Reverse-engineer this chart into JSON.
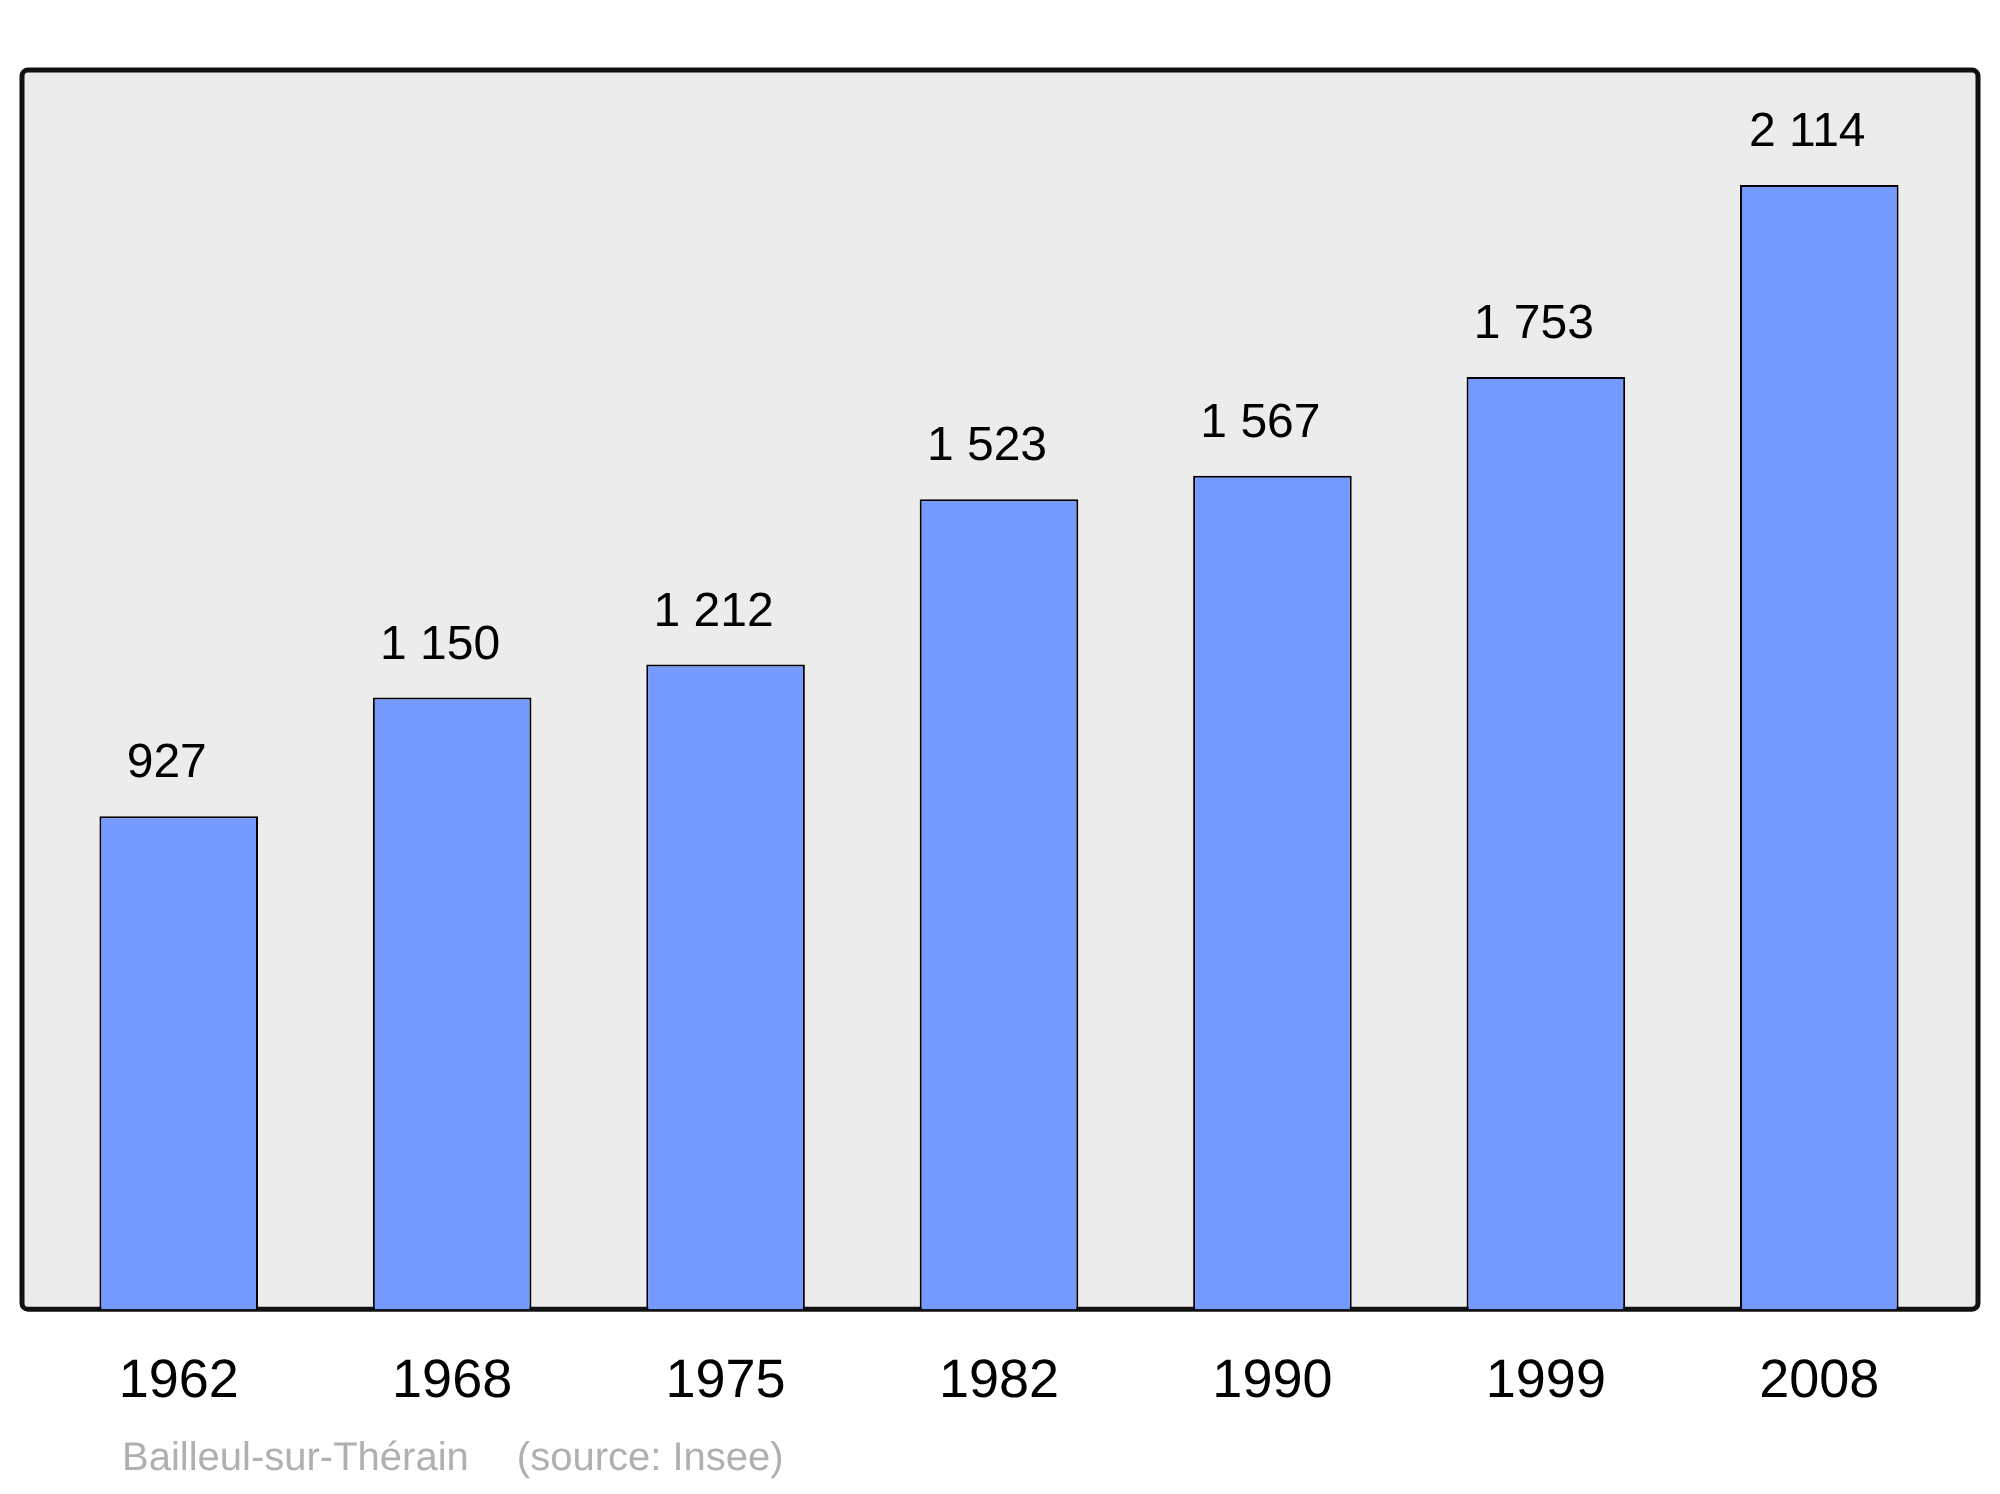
{
  "chart_data": {
    "type": "bar",
    "categories": [
      "1962",
      "1968",
      "1975",
      "1982",
      "1990",
      "1999",
      "2008"
    ],
    "values": [
      927,
      1150,
      1212,
      1523,
      1567,
      1753,
      2114
    ],
    "value_labels": [
      "927",
      "1 150",
      "1 212",
      "1 523",
      "1 567",
      "1 753",
      "2 114"
    ],
    "color": "#7499ff",
    "ylim": [
      0,
      2330
    ],
    "grid": false,
    "legend": false,
    "annotations": [
      "Bailleul-sur-Thérain",
      "(source: Insee)"
    ]
  }
}
